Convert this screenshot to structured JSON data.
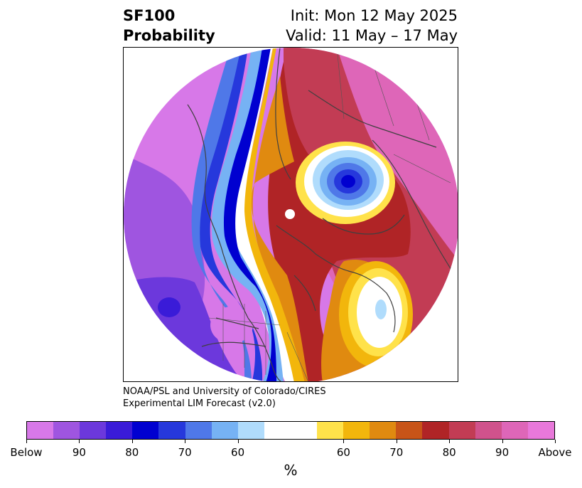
{
  "header": {
    "title_line1": "SF100",
    "title_line2": "Probability",
    "init_text": "Init: Mon 12 May 2025",
    "valid_text": "Valid: 11 May – 17 May"
  },
  "credit": {
    "line1": "NOAA/PSL and University of Colorado/CIRES",
    "line2": "Experimental LIM Forecast (v2.0)"
  },
  "colorbar": {
    "colors": [
      "#d778e8",
      "#9f55e0",
      "#6c38dc",
      "#3a1bd8",
      "#0000d0",
      "#2638dc",
      "#4f78e8",
      "#76b2f4",
      "#b0dcfc",
      "#ffffff",
      "#ffffff",
      "#ffe24a",
      "#f2b60c",
      "#e08a10",
      "#c85418",
      "#b02426",
      "#c23c54",
      "#d0528c",
      "#de66b8",
      "#e878da"
    ],
    "labels": [
      "Below",
      "90",
      "80",
      "70",
      "60",
      "60",
      "70",
      "80",
      "90",
      "Above"
    ],
    "unit": "%"
  },
  "map": {
    "projection": "north-polar-stereographic",
    "variable": "SF100 probability",
    "colors": {
      "coast": "#404040",
      "magenta_strong": "#d778e8",
      "blue_deep": "#0000d0",
      "red_dark": "#b02426",
      "orange": "#e08a10",
      "yellow": "#ffe24a"
    }
  }
}
